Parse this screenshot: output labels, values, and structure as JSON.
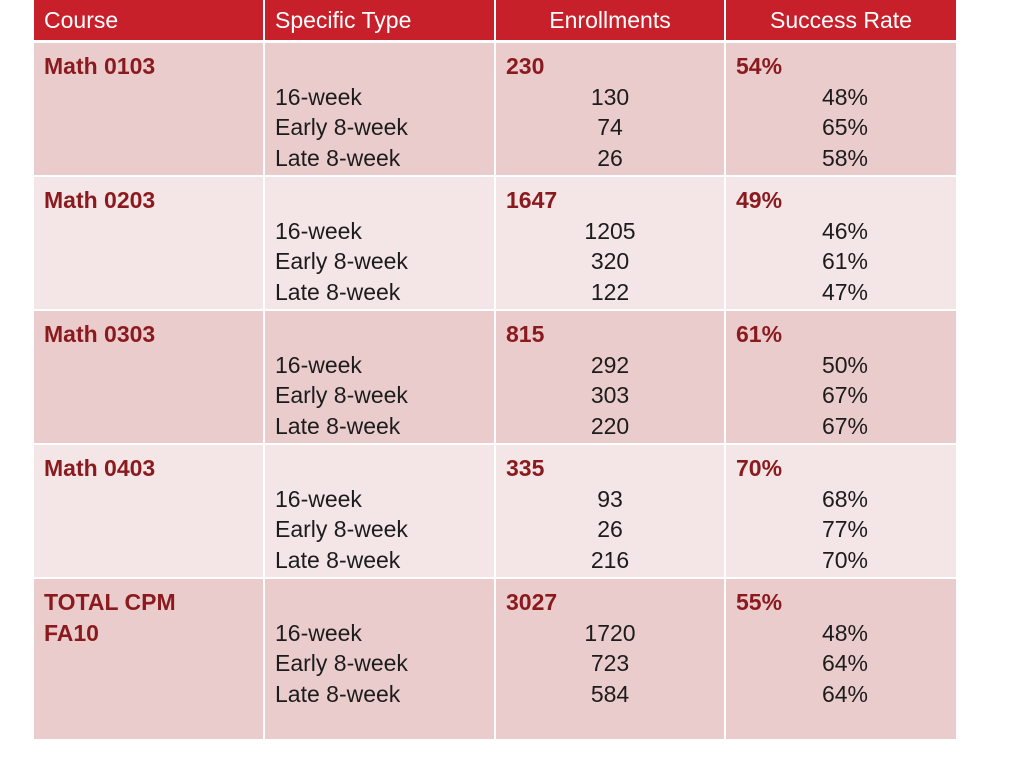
{
  "header": {
    "course": "Course",
    "type": "Specific Type",
    "enrollments": "Enrollments",
    "success_rate": "Success Rate"
  },
  "rows": [
    {
      "course_line1": "Math 0103",
      "course_line2": "",
      "types": [
        "16-week",
        "Early 8-week",
        "Late 8-week"
      ],
      "enroll_total": "230",
      "enrolls": [
        "130",
        "74",
        "26"
      ],
      "rate_total": "54%",
      "rates": [
        "48%",
        "65%",
        "58%"
      ]
    },
    {
      "course_line1": "Math 0203",
      "course_line2": "",
      "types": [
        "16-week",
        "Early 8-week",
        "Late 8-week"
      ],
      "enroll_total": "1647",
      "enrolls": [
        "1205",
        "320",
        "122"
      ],
      "rate_total": "49%",
      "rates": [
        "46%",
        "61%",
        "47%"
      ]
    },
    {
      "course_line1": "Math 0303",
      "course_line2": "",
      "types": [
        "16-week",
        "Early 8-week",
        "Late 8-week"
      ],
      "enroll_total": "815",
      "enrolls": [
        "292",
        "303",
        "220"
      ],
      "rate_total": "61%",
      "rates": [
        "50%",
        "67%",
        "67%"
      ]
    },
    {
      "course_line1": "Math 0403",
      "course_line2": "",
      "types": [
        "16-week",
        "Early 8-week",
        "Late 8-week"
      ],
      "enroll_total": "335",
      "enrolls": [
        "93",
        "26",
        "216"
      ],
      "rate_total": "70%",
      "rates": [
        "68%",
        "77%",
        "70%"
      ]
    },
    {
      "course_line1": "TOTAL CPM",
      "course_line2": "FA10",
      "types": [
        "16-week",
        "Early 8-week",
        "Late 8-week"
      ],
      "enroll_total": "3027",
      "enrolls": [
        "1720",
        "723",
        "584"
      ],
      "rate_total": "55%",
      "rates": [
        "48%",
        "64%",
        "64%"
      ]
    }
  ],
  "colors": {
    "header_bg": "#c8202a",
    "row_odd": "#ebcccd",
    "row_even": "#f4e5e6",
    "accent_text": "#8b1a1e"
  }
}
